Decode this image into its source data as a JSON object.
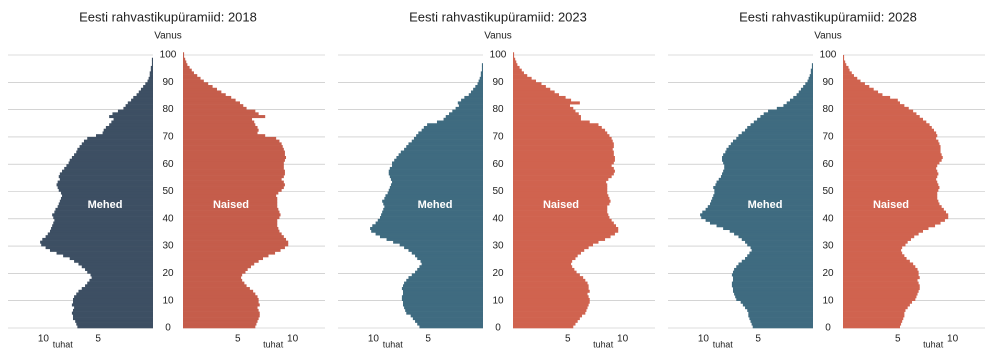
{
  "chart_data": [
    {
      "type": "pyramid",
      "title": "Eesti rahvastikupüramiid: 2018",
      "y_label": "Vanus",
      "x_label": "tuhat",
      "ages": [
        0,
        1,
        2,
        3,
        4,
        5,
        6,
        7,
        8,
        9,
        10,
        11,
        12,
        13,
        14,
        15,
        16,
        17,
        18,
        19,
        20,
        21,
        22,
        23,
        24,
        25,
        26,
        27,
        28,
        29,
        30,
        31,
        32,
        33,
        34,
        35,
        36,
        37,
        38,
        39,
        40,
        41,
        42,
        43,
        44,
        45,
        46,
        47,
        48,
        49,
        50,
        51,
        52,
        53,
        54,
        55,
        56,
        57,
        58,
        59,
        60,
        61,
        62,
        63,
        64,
        65,
        66,
        67,
        68,
        69,
        70,
        71,
        72,
        73,
        74,
        75,
        76,
        77,
        78,
        79,
        80,
        81,
        82,
        83,
        84,
        85,
        86,
        87,
        88,
        89,
        90,
        91,
        92,
        93,
        94,
        95,
        96,
        97,
        98,
        99,
        100
      ],
      "ylim": [
        0,
        100
      ],
      "yticks": [
        0,
        10,
        20,
        30,
        40,
        50,
        60,
        70,
        80,
        90,
        100
      ],
      "xlim": [
        0,
        12.5
      ],
      "xticks": [
        5,
        10
      ],
      "grid": true,
      "series": [
        {
          "name": "Mehed",
          "color": "#3d4f63",
          "values": [
            6.9,
            7.0,
            7.1,
            7.3,
            7.3,
            7.4,
            7.3,
            7.2,
            7.4,
            7.3,
            7.3,
            7.2,
            7.0,
            6.8,
            6.5,
            6.2,
            6.0,
            5.8,
            5.6,
            5.7,
            6.0,
            6.2,
            6.5,
            6.8,
            7.2,
            7.6,
            8.2,
            8.8,
            9.4,
            9.8,
            10.2,
            10.3,
            10.1,
            9.8,
            9.6,
            9.4,
            9.3,
            9.2,
            9.1,
            9.0,
            9.1,
            9.2,
            9.0,
            8.9,
            8.7,
            8.6,
            8.5,
            8.4,
            8.3,
            8.4,
            8.6,
            8.7,
            8.8,
            8.7,
            8.5,
            8.6,
            8.5,
            8.3,
            8.1,
            7.9,
            7.7,
            7.6,
            7.4,
            7.2,
            7.0,
            6.9,
            6.7,
            6.5,
            6.3,
            6.0,
            5.2,
            4.6,
            4.5,
            4.3,
            4.0,
            3.8,
            3.6,
            4.0,
            3.7,
            3.2,
            2.7,
            2.5,
            2.3,
            2.0,
            1.8,
            1.5,
            1.3,
            1.1,
            0.9,
            0.7,
            0.5,
            0.4,
            0.3,
            0.3,
            0.2,
            0.2,
            0.1,
            0.1,
            0.1,
            0.0,
            0.0
          ]
        },
        {
          "name": "Naised",
          "color": "#c55d4b",
          "values": [
            6.6,
            6.7,
            6.8,
            6.9,
            7.0,
            7.0,
            6.9,
            6.8,
            7.0,
            6.9,
            6.9,
            6.8,
            6.6,
            6.4,
            6.1,
            5.8,
            5.6,
            5.4,
            5.3,
            5.4,
            5.7,
            5.9,
            6.2,
            6.5,
            6.9,
            7.3,
            7.8,
            8.4,
            8.9,
            9.3,
            9.6,
            9.6,
            9.4,
            9.2,
            9.0,
            8.8,
            8.7,
            8.6,
            8.6,
            8.6,
            8.8,
            8.9,
            8.8,
            8.7,
            8.6,
            8.6,
            8.6,
            8.6,
            8.5,
            8.7,
            9.0,
            9.2,
            9.3,
            9.2,
            9.0,
            9.2,
            9.3,
            9.3,
            9.2,
            9.2,
            9.2,
            9.3,
            9.4,
            9.3,
            9.3,
            9.2,
            9.1,
            9.0,
            8.8,
            8.5,
            7.5,
            6.8,
            6.9,
            6.8,
            6.6,
            6.5,
            6.3,
            7.5,
            6.9,
            6.6,
            5.8,
            5.5,
            5.2,
            4.8,
            4.4,
            3.9,
            3.5,
            3.1,
            2.7,
            2.3,
            1.9,
            1.6,
            1.3,
            1.0,
            0.8,
            0.6,
            0.4,
            0.3,
            0.2,
            0.1,
            0.1
          ]
        }
      ]
    },
    {
      "type": "pyramid",
      "title": "Eesti rahvastikupüramiid: 2023",
      "y_label": "Vanus",
      "x_label": "tuhat",
      "ages": [
        0,
        1,
        2,
        3,
        4,
        5,
        6,
        7,
        8,
        9,
        10,
        11,
        12,
        13,
        14,
        15,
        16,
        17,
        18,
        19,
        20,
        21,
        22,
        23,
        24,
        25,
        26,
        27,
        28,
        29,
        30,
        31,
        32,
        33,
        34,
        35,
        36,
        37,
        38,
        39,
        40,
        41,
        42,
        43,
        44,
        45,
        46,
        47,
        48,
        49,
        50,
        51,
        52,
        53,
        54,
        55,
        56,
        57,
        58,
        59,
        60,
        61,
        62,
        63,
        64,
        65,
        66,
        67,
        68,
        69,
        70,
        71,
        72,
        73,
        74,
        75,
        76,
        77,
        78,
        79,
        80,
        81,
        82,
        83,
        84,
        85,
        86,
        87,
        88,
        89,
        90,
        91,
        92,
        93,
        94,
        95,
        96,
        97,
        98,
        99,
        100
      ],
      "ylim": [
        0,
        100
      ],
      "yticks": [
        0,
        10,
        20,
        30,
        40,
        50,
        60,
        70,
        80,
        90,
        100
      ],
      "xlim": [
        0,
        12.5
      ],
      "xticks": [
        5,
        10
      ],
      "grid": true,
      "series": [
        {
          "name": "Mehed",
          "color": "#3f6b80",
          "values": [
            5.8,
            6.0,
            6.2,
            6.4,
            6.6,
            7.0,
            7.1,
            7.2,
            7.3,
            7.3,
            7.4,
            7.4,
            7.3,
            7.3,
            7.4,
            7.3,
            7.2,
            7.0,
            6.8,
            6.5,
            6.2,
            6.0,
            5.8,
            5.6,
            5.7,
            6.0,
            6.2,
            6.5,
            6.8,
            7.2,
            7.6,
            8.2,
            8.8,
            9.4,
            9.8,
            10.2,
            10.3,
            10.1,
            9.8,
            9.6,
            9.4,
            9.3,
            9.2,
            9.1,
            9.0,
            9.1,
            9.2,
            9.0,
            8.9,
            8.7,
            8.6,
            8.5,
            8.4,
            8.3,
            8.4,
            8.5,
            8.6,
            8.6,
            8.5,
            8.3,
            8.3,
            8.1,
            7.9,
            7.7,
            7.5,
            7.2,
            7.0,
            6.8,
            6.5,
            6.3,
            6.1,
            5.9,
            5.6,
            5.4,
            5.1,
            4.2,
            3.6,
            3.4,
            3.1,
            2.8,
            2.5,
            2.2,
            2.3,
            2.0,
            1.7,
            1.3,
            1.1,
            0.9,
            0.7,
            0.5,
            0.4,
            0.3,
            0.2,
            0.2,
            0.1,
            0.1,
            0.1,
            0.0,
            0.0,
            0.0,
            0.0
          ]
        },
        {
          "name": "Naised",
          "color": "#d0634f",
          "values": [
            5.5,
            5.7,
            5.9,
            6.1,
            6.3,
            6.6,
            6.7,
            6.8,
            6.9,
            7.0,
            7.0,
            6.9,
            6.8,
            7.0,
            6.9,
            6.9,
            6.8,
            6.6,
            6.4,
            6.1,
            5.8,
            5.6,
            5.4,
            5.3,
            5.4,
            5.7,
            5.9,
            6.2,
            6.5,
            6.9,
            7.3,
            7.8,
            8.4,
            8.9,
            9.3,
            9.6,
            9.6,
            9.4,
            9.2,
            9.0,
            8.8,
            8.7,
            8.6,
            8.6,
            8.6,
            8.8,
            8.9,
            8.8,
            8.7,
            8.6,
            8.6,
            8.6,
            8.6,
            8.5,
            8.7,
            9.0,
            9.2,
            9.3,
            9.2,
            9.0,
            9.2,
            9.3,
            9.3,
            9.2,
            9.2,
            9.1,
            9.2,
            9.2,
            9.1,
            9.0,
            8.8,
            8.6,
            8.4,
            8.1,
            7.8,
            7.0,
            6.2,
            6.2,
            6.0,
            5.7,
            5.5,
            5.2,
            6.1,
            5.3,
            4.8,
            4.2,
            3.8,
            3.4,
            3.0,
            2.6,
            2.1,
            1.7,
            1.3,
            1.0,
            0.8,
            0.6,
            0.4,
            0.3,
            0.2,
            0.1,
            0.1
          ]
        }
      ]
    },
    {
      "type": "pyramid",
      "title": "Eesti rahvastikupüramiid: 2028",
      "y_label": "Vanus",
      "x_label": "tuhat",
      "ages": [
        0,
        1,
        2,
        3,
        4,
        5,
        6,
        7,
        8,
        9,
        10,
        11,
        12,
        13,
        14,
        15,
        16,
        17,
        18,
        19,
        20,
        21,
        22,
        23,
        24,
        25,
        26,
        27,
        28,
        29,
        30,
        31,
        32,
        33,
        34,
        35,
        36,
        37,
        38,
        39,
        40,
        41,
        42,
        43,
        44,
        45,
        46,
        47,
        48,
        49,
        50,
        51,
        52,
        53,
        54,
        55,
        56,
        57,
        58,
        59,
        60,
        61,
        62,
        63,
        64,
        65,
        66,
        67,
        68,
        69,
        70,
        71,
        72,
        73,
        74,
        75,
        76,
        77,
        78,
        79,
        80,
        81,
        82,
        83,
        84,
        85,
        86,
        87,
        88,
        89,
        90,
        91,
        92,
        93,
        94,
        95,
        96,
        97,
        98,
        99,
        100
      ],
      "ylim": [
        0,
        100
      ],
      "yticks": [
        0,
        10,
        20,
        30,
        40,
        50,
        60,
        70,
        80,
        90,
        100
      ],
      "xlim": [
        0,
        12.5
      ],
      "xticks": [
        5,
        10
      ],
      "grid": true,
      "series": [
        {
          "name": "Mehed",
          "color": "#3f6b80",
          "values": [
            5.5,
            5.6,
            5.7,
            5.8,
            5.9,
            5.9,
            6.0,
            6.2,
            6.4,
            6.6,
            7.0,
            7.1,
            7.2,
            7.3,
            7.3,
            7.4,
            7.4,
            7.3,
            7.3,
            7.4,
            7.3,
            7.2,
            7.0,
            6.8,
            6.5,
            6.2,
            6.0,
            5.8,
            5.6,
            5.7,
            6.0,
            6.2,
            6.5,
            6.8,
            7.2,
            7.6,
            8.2,
            8.8,
            9.4,
            9.8,
            10.2,
            10.3,
            10.1,
            9.8,
            9.6,
            9.4,
            9.3,
            9.2,
            9.1,
            9.0,
            9.0,
            9.1,
            8.9,
            8.8,
            8.6,
            8.4,
            8.3,
            8.2,
            8.1,
            8.1,
            8.2,
            8.3,
            8.3,
            8.2,
            8.0,
            7.9,
            7.7,
            7.5,
            7.3,
            7.0,
            6.8,
            6.5,
            6.2,
            6.0,
            5.7,
            5.4,
            5.1,
            4.8,
            4.5,
            4.1,
            3.3,
            2.7,
            2.4,
            2.1,
            1.8,
            1.5,
            1.3,
            1.1,
            0.9,
            0.7,
            0.5,
            0.4,
            0.3,
            0.2,
            0.2,
            0.1,
            0.1,
            0.0,
            0.0,
            0.0,
            0.0
          ]
        },
        {
          "name": "Naised",
          "color": "#d0634f",
          "values": [
            5.2,
            5.3,
            5.4,
            5.5,
            5.6,
            5.6,
            5.7,
            5.9,
            6.1,
            6.3,
            6.6,
            6.7,
            6.8,
            6.9,
            7.0,
            7.0,
            6.9,
            6.8,
            7.0,
            6.9,
            6.9,
            6.8,
            6.6,
            6.4,
            6.1,
            5.8,
            5.6,
            5.4,
            5.3,
            5.4,
            5.7,
            5.9,
            6.2,
            6.5,
            6.9,
            7.3,
            7.8,
            8.4,
            8.9,
            9.3,
            9.6,
            9.6,
            9.4,
            9.2,
            9.0,
            8.8,
            8.7,
            8.6,
            8.6,
            8.6,
            8.7,
            8.8,
            8.7,
            8.6,
            8.5,
            8.6,
            8.7,
            8.6,
            8.5,
            8.6,
            8.8,
            9.0,
            9.1,
            9.0,
            8.9,
            8.9,
            8.9,
            8.8,
            8.7,
            8.5,
            8.6,
            8.5,
            8.3,
            8.1,
            7.9,
            7.6,
            7.3,
            7.0,
            6.7,
            6.4,
            6.0,
            5.6,
            5.2,
            5.0,
            4.3,
            3.6,
            3.2,
            2.8,
            2.4,
            2.0,
            1.6,
            1.3,
            1.0,
            0.8,
            0.6,
            0.5,
            0.3,
            0.2,
            0.1,
            0.1,
            0.0
          ]
        }
      ]
    }
  ]
}
